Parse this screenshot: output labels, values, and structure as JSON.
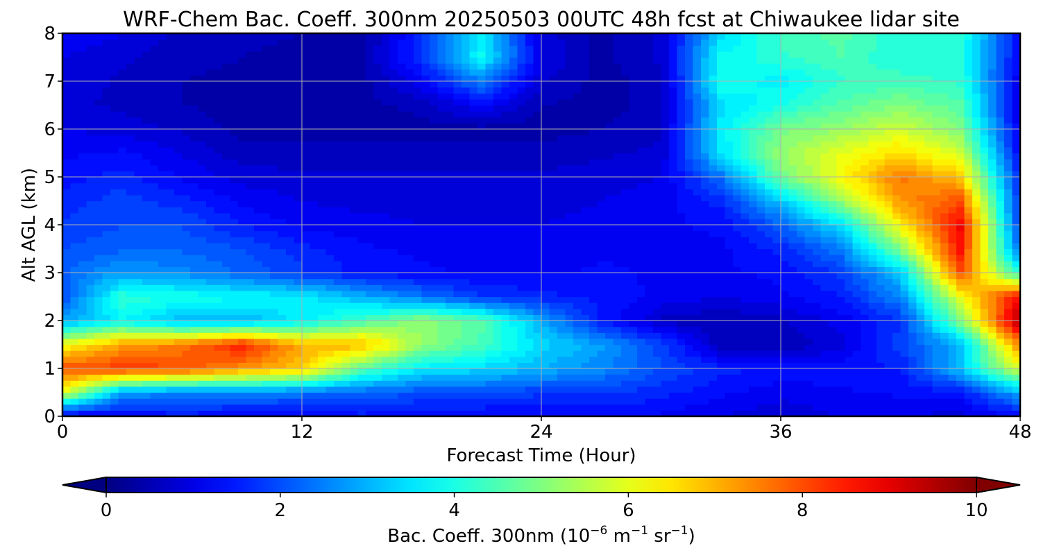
{
  "chart_data": {
    "type": "heatmap",
    "subtype": "filled-contour",
    "title": "WRF-Chem Bac. Coeff. 300nm  20250503 00UTC 48h fcst at Chiwaukee lidar site",
    "xlabel": "Forecast Time (Hour)",
    "ylabel": "Alt AGL (km)",
    "xlim": [
      0,
      48
    ],
    "ylim": [
      0,
      8
    ],
    "xticks": [
      0,
      12,
      24,
      36,
      48
    ],
    "yticks": [
      0,
      1,
      2,
      3,
      4,
      5,
      6,
      7,
      8
    ],
    "grid": true,
    "colormap": "jet",
    "colorbar": {
      "orientation": "horizontal",
      "placement": "bottom",
      "range": [
        0,
        10
      ],
      "ticks": [
        0,
        2,
        4,
        6,
        8,
        10
      ],
      "extend": "both",
      "label_main": "Bac. Coeff. 300nm  (10",
      "label_exp1": "−6",
      "label_unit1": " m",
      "label_exp2": "−1",
      "label_unit2": " sr",
      "label_exp3": "−1",
      "label_close": ")"
    },
    "grid_x": [
      0,
      3,
      6,
      9,
      12,
      15,
      18,
      21,
      24,
      27,
      30,
      33,
      36,
      39,
      42,
      45,
      48
    ],
    "grid_y": [
      0,
      0.5,
      1,
      1.5,
      2,
      2.5,
      3,
      3.5,
      4,
      4.5,
      5,
      5.5,
      6,
      6.5,
      7,
      7.5,
      8
    ],
    "values": [
      [
        0.9,
        1.2,
        1.4,
        1.2,
        1.2,
        1.4,
        1.3,
        1.2,
        1.2,
        1.3,
        1.2,
        1.0,
        0.8,
        1.0,
        1.0,
        0.9,
        1.2
      ],
      [
        6.0,
        2.8,
        2.5,
        2.6,
        2.4,
        2.2,
        2.0,
        2.0,
        1.8,
        1.8,
        1.6,
        1.3,
        1.1,
        1.2,
        1.3,
        1.4,
        3.0
      ],
      [
        8.0,
        8.2,
        8.0,
        7.3,
        6.8,
        4.6,
        3.6,
        3.4,
        3.0,
        2.6,
        2.0,
        1.6,
        1.4,
        1.4,
        1.5,
        3.2,
        6.0
      ],
      [
        6.2,
        7.2,
        7.6,
        8.5,
        7.0,
        7.0,
        5.2,
        4.4,
        3.4,
        2.8,
        1.9,
        0.6,
        0.5,
        0.9,
        1.9,
        3.0,
        7.5
      ],
      [
        2.8,
        3.7,
        3.0,
        3.0,
        3.6,
        4.4,
        5.2,
        4.6,
        2.9,
        1.5,
        0.7,
        0.5,
        0.7,
        1.1,
        1.7,
        5.0,
        9.6
      ],
      [
        2.0,
        4.2,
        4.0,
        3.8,
        3.6,
        3.0,
        2.4,
        1.8,
        1.6,
        1.4,
        1.2,
        1.0,
        1.2,
        1.5,
        2.6,
        6.0,
        8.8
      ],
      [
        2.2,
        2.8,
        2.6,
        2.2,
        1.8,
        1.4,
        1.3,
        1.2,
        1.2,
        1.3,
        1.2,
        1.2,
        1.3,
        1.8,
        3.2,
        8.0,
        4.0
      ],
      [
        2.0,
        2.2,
        2.2,
        2.0,
        1.6,
        1.3,
        1.2,
        1.1,
        1.1,
        1.2,
        1.2,
        1.2,
        1.6,
        2.5,
        5.0,
        8.6,
        2.2
      ],
      [
        1.8,
        2.0,
        2.0,
        1.5,
        1.2,
        1.1,
        1.0,
        1.0,
        1.0,
        1.1,
        1.2,
        1.3,
        2.2,
        3.5,
        6.3,
        8.8,
        1.8
      ],
      [
        1.6,
        1.9,
        1.6,
        1.2,
        1.0,
        0.9,
        0.9,
        0.9,
        0.9,
        1.0,
        1.1,
        1.6,
        3.2,
        5.2,
        7.3,
        8.0,
        1.6
      ],
      [
        1.4,
        1.6,
        1.2,
        0.9,
        0.8,
        0.8,
        0.8,
        0.8,
        0.8,
        0.9,
        1.0,
        2.3,
        4.8,
        6.2,
        7.6,
        6.8,
        1.5
      ],
      [
        1.2,
        1.3,
        1.0,
        0.6,
        0.6,
        0.6,
        0.6,
        0.6,
        0.6,
        0.7,
        0.8,
        3.5,
        5.2,
        6.0,
        6.6,
        5.8,
        1.2
      ],
      [
        1.0,
        0.9,
        0.7,
        0.4,
        0.4,
        0.4,
        0.4,
        0.4,
        0.4,
        0.5,
        0.7,
        3.6,
        4.9,
        5.2,
        5.8,
        5.0,
        1.0
      ],
      [
        0.8,
        0.7,
        0.5,
        0.4,
        0.4,
        0.4,
        0.6,
        1.2,
        0.5,
        0.4,
        0.6,
        3.4,
        4.0,
        4.6,
        5.0,
        4.6,
        0.9
      ],
      [
        0.9,
        0.7,
        0.5,
        0.4,
        0.3,
        0.4,
        1.2,
        2.5,
        0.8,
        0.4,
        0.6,
        4.0,
        3.6,
        4.2,
        4.4,
        4.2,
        1.0
      ],
      [
        1.0,
        0.8,
        0.6,
        0.5,
        0.4,
        0.4,
        1.8,
        3.8,
        1.0,
        0.4,
        0.8,
        3.8,
        4.2,
        4.5,
        4.0,
        4.0,
        1.2
      ],
      [
        1.2,
        1.0,
        0.7,
        0.6,
        0.5,
        0.4,
        1.6,
        3.6,
        0.9,
        0.4,
        0.8,
        3.4,
        4.3,
        4.6,
        4.0,
        4.2,
        1.3
      ]
    ]
  }
}
